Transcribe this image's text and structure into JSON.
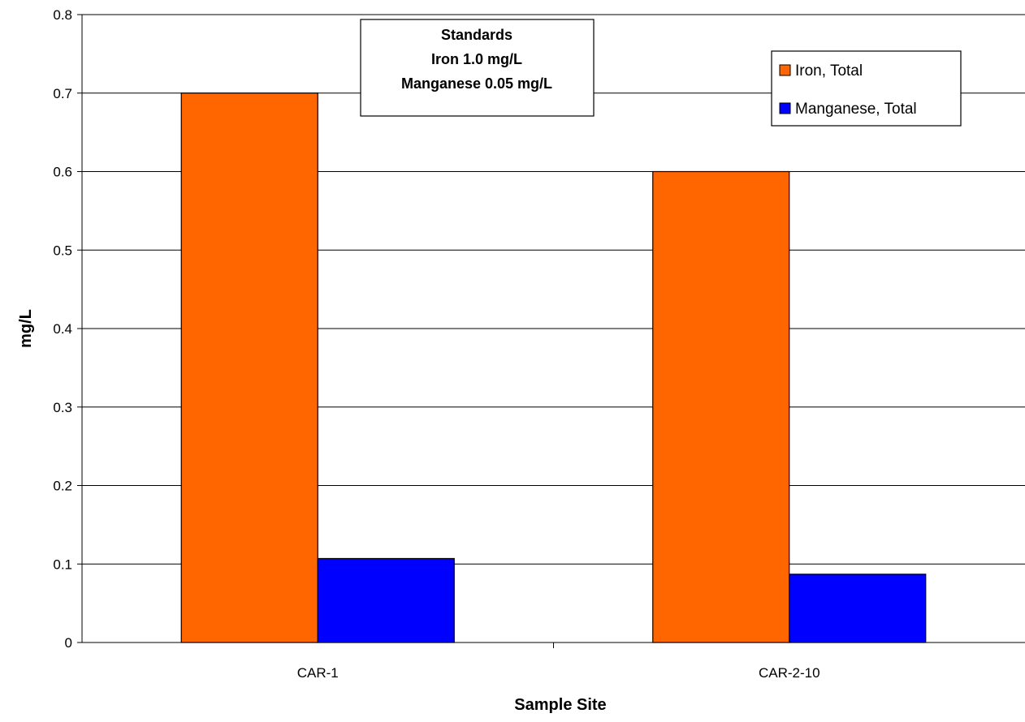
{
  "chart_data": {
    "type": "bar",
    "title": "",
    "xlabel": "Sample Site",
    "ylabel": "mg/L",
    "categories": [
      "CAR-1",
      "CAR-2-10"
    ],
    "series": [
      {
        "name": "Iron, Total",
        "color": "#ff6600",
        "values": [
          0.7,
          0.6
        ]
      },
      {
        "name": "Manganese, Total",
        "color": "#0000ff",
        "values": [
          0.107,
          0.087
        ]
      }
    ],
    "ylim": [
      0,
      0.8
    ],
    "yticks": [
      "0",
      "0.1",
      "0.2",
      "0.3",
      "0.4",
      "0.5",
      "0.6",
      "0.7",
      "0.8"
    ],
    "grid": true,
    "legend_position": "top-right",
    "annotation": {
      "lines": [
        "Standards",
        "Iron 1.0 mg/L",
        "Manganese 0.05 mg/L"
      ]
    }
  }
}
